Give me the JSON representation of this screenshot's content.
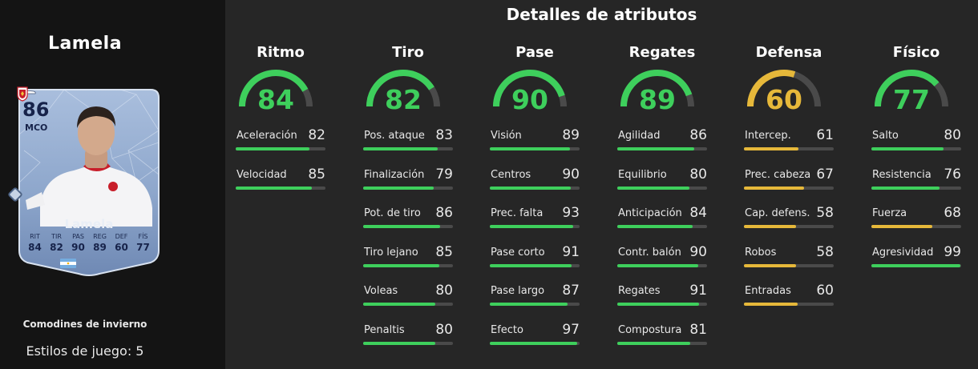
{
  "player": {
    "name": "Lamela",
    "card": {
      "rating": "86",
      "position": "MCO",
      "name": "Lamela",
      "stats": [
        {
          "label": "RIT",
          "value": "84"
        },
        {
          "label": "TIR",
          "value": "82"
        },
        {
          "label": "PAS",
          "value": "90"
        },
        {
          "label": "REG",
          "value": "89"
        },
        {
          "label": "DEF",
          "value": "60"
        },
        {
          "label": "FÍS",
          "value": "77"
        }
      ]
    },
    "program": "Comodines de invierno",
    "playstyles": "Estilos de juego: 5"
  },
  "header": "Detalles de atributos",
  "colors": {
    "green": "#3ecf5c",
    "yellow": "#e6b83a",
    "track": "#4a4a4a",
    "background": "#262626",
    "left_panel": "#141414"
  },
  "categories": [
    {
      "name": "Ritmo",
      "value": 84,
      "value_text": "84",
      "tier": "green",
      "attributes": [
        {
          "label": "Aceleración",
          "value": 82,
          "value_text": "82"
        },
        {
          "label": "Velocidad",
          "value": 85,
          "value_text": "85"
        }
      ]
    },
    {
      "name": "Tiro",
      "value": 82,
      "value_text": "82",
      "tier": "green",
      "attributes": [
        {
          "label": "Pos. ataque",
          "value": 83,
          "value_text": "83"
        },
        {
          "label": "Finalización",
          "value": 79,
          "value_text": "79"
        },
        {
          "label": "Pot. de tiro",
          "value": 86,
          "value_text": "86"
        },
        {
          "label": "Tiro lejano",
          "value": 85,
          "value_text": "85"
        },
        {
          "label": "Voleas",
          "value": 80,
          "value_text": "80"
        },
        {
          "label": "Penaltis",
          "value": 80,
          "value_text": "80"
        }
      ]
    },
    {
      "name": "Pase",
      "value": 90,
      "value_text": "90",
      "tier": "green",
      "attributes": [
        {
          "label": "Visión",
          "value": 89,
          "value_text": "89"
        },
        {
          "label": "Centros",
          "value": 90,
          "value_text": "90"
        },
        {
          "label": "Prec. falta",
          "value": 93,
          "value_text": "93"
        },
        {
          "label": "Pase corto",
          "value": 91,
          "value_text": "91"
        },
        {
          "label": "Pase largo",
          "value": 87,
          "value_text": "87"
        },
        {
          "label": "Efecto",
          "value": 97,
          "value_text": "97"
        }
      ]
    },
    {
      "name": "Regates",
      "value": 89,
      "value_text": "89",
      "tier": "green",
      "attributes": [
        {
          "label": "Agilidad",
          "value": 86,
          "value_text": "86"
        },
        {
          "label": "Equilibrio",
          "value": 80,
          "value_text": "80"
        },
        {
          "label": "Anticipación",
          "value": 84,
          "value_text": "84"
        },
        {
          "label": "Contr. balón",
          "value": 90,
          "value_text": "90"
        },
        {
          "label": "Regates",
          "value": 91,
          "value_text": "91"
        },
        {
          "label": "Compostura",
          "value": 81,
          "value_text": "81"
        }
      ]
    },
    {
      "name": "Defensa",
      "value": 60,
      "value_text": "60",
      "tier": "yellow",
      "attributes": [
        {
          "label": "Intercep.",
          "value": 61,
          "value_text": "61"
        },
        {
          "label": "Prec. cabeza",
          "value": 67,
          "value_text": "67"
        },
        {
          "label": "Cap. defens.",
          "value": 58,
          "value_text": "58"
        },
        {
          "label": "Robos",
          "value": 58,
          "value_text": "58"
        },
        {
          "label": "Entradas",
          "value": 60,
          "value_text": "60"
        }
      ]
    },
    {
      "name": "Físico",
      "value": 77,
      "value_text": "77",
      "tier": "green",
      "attributes": [
        {
          "label": "Salto",
          "value": 80,
          "value_text": "80"
        },
        {
          "label": "Resistencia",
          "value": 76,
          "value_text": "76"
        },
        {
          "label": "Fuerza",
          "value": 68,
          "value_text": "68"
        },
        {
          "label": "Agresividad",
          "value": 99,
          "value_text": "99"
        }
      ]
    }
  ]
}
